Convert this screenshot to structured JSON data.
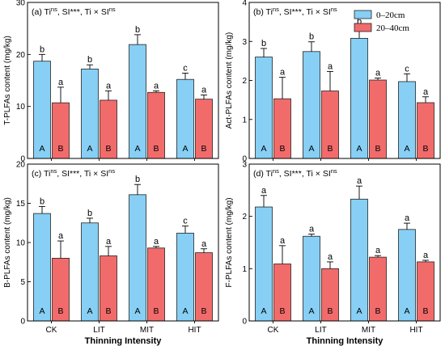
{
  "figure": {
    "legend": [
      {
        "label": "0–20cm",
        "color": "#87cff4"
      },
      {
        "label": "20–40cm",
        "color": "#f26b6b"
      }
    ],
    "xlabel": "Thinning Intensity"
  },
  "chart_data": [
    {
      "type": "bar",
      "panel": "(a)",
      "title_parts": [
        "(a) Ti",
        "ns",
        ", SI***, Ti × SI",
        "ns"
      ],
      "ylabel": "T-PLFAs content (mg/kg)",
      "ylim": [
        0,
        30
      ],
      "yticks": [
        0,
        10,
        20,
        30
      ],
      "categories": [
        "CK",
        "LIT",
        "MIT",
        "HIT"
      ],
      "series": [
        {
          "name": "0–20cm",
          "values": [
            18.7,
            17.2,
            21.9,
            15.2
          ],
          "errors": [
            1.3,
            0.8,
            1.9,
            1.2
          ],
          "letters": [
            "b",
            "b",
            "b",
            "c"
          ],
          "inbar": [
            "A",
            "A",
            "A",
            "A"
          ]
        },
        {
          "name": "20–40cm",
          "values": [
            10.7,
            11.2,
            12.7,
            11.4
          ],
          "errors": [
            3.0,
            1.8,
            0.3,
            0.8
          ],
          "letters": [
            "a",
            "a",
            "a",
            "a"
          ],
          "inbar": [
            "B",
            "B",
            "B",
            "B"
          ]
        }
      ],
      "show_xlabel": false
    },
    {
      "type": "bar",
      "panel": "(b)",
      "title_parts": [
        "(b) Ti",
        "ns",
        ", SI***, Ti × SI",
        "ns"
      ],
      "ylabel": "Act-PLFAs content (mg/kg)",
      "ylim": [
        0,
        4
      ],
      "yticks": [
        0,
        1,
        2,
        3,
        4
      ],
      "categories": [
        "CK",
        "LIT",
        "MIT",
        "HIT"
      ],
      "series": [
        {
          "name": "0–20cm",
          "values": [
            2.6,
            2.74,
            3.08,
            1.97
          ],
          "errors": [
            0.22,
            0.25,
            0.3,
            0.2
          ],
          "letters": [
            "b",
            "b",
            "b",
            "c"
          ],
          "inbar": [
            "A",
            "A",
            "A",
            "A"
          ]
        },
        {
          "name": "20–40cm",
          "values": [
            1.53,
            1.73,
            2.01,
            1.43
          ],
          "errors": [
            0.55,
            0.5,
            0.05,
            0.15
          ],
          "letters": [
            "a",
            "a",
            "a",
            "a"
          ],
          "inbar": [
            "B",
            "B",
            "B",
            "B"
          ]
        }
      ],
      "show_xlabel": false
    },
    {
      "type": "bar",
      "panel": "(c)",
      "title_parts": [
        "(c) Ti",
        "ns",
        ", SI***, Ti × SI",
        "ns"
      ],
      "ylabel": "B-PLFAs content (mg/kg)",
      "ylim": [
        0,
        20
      ],
      "yticks": [
        0,
        5,
        10,
        15,
        20
      ],
      "categories": [
        "CK",
        "LIT",
        "MIT",
        "HIT"
      ],
      "series": [
        {
          "name": "0–20cm",
          "values": [
            13.7,
            12.5,
            16.1,
            11.2
          ],
          "errors": [
            0.9,
            0.6,
            1.3,
            0.9
          ],
          "letters": [
            "b",
            "b",
            "b",
            "c"
          ],
          "inbar": [
            "A",
            "A",
            "A",
            "A"
          ]
        },
        {
          "name": "20–40cm",
          "values": [
            8.0,
            8.3,
            9.3,
            8.7
          ],
          "errors": [
            2.2,
            1.2,
            0.2,
            0.5
          ],
          "letters": [
            "a",
            "a",
            "a",
            "a"
          ],
          "inbar": [
            "B",
            "B",
            "B",
            "B"
          ]
        }
      ],
      "show_xlabel": true
    },
    {
      "type": "bar",
      "panel": "(d)",
      "title_parts": [
        "(d) Ti",
        "ns",
        ", SI***, Ti × SI",
        "ns"
      ],
      "ylabel": "F-PLFAs content (mg/kg)",
      "ylim": [
        0,
        3
      ],
      "yticks": [
        0,
        1,
        2,
        3
      ],
      "categories": [
        "CK",
        "LIT",
        "MIT",
        "HIT"
      ],
      "series": [
        {
          "name": "0–20cm",
          "values": [
            2.18,
            1.62,
            2.33,
            1.75
          ],
          "errors": [
            0.22,
            0.04,
            0.25,
            0.12
          ],
          "letters": [
            "a",
            "a",
            "a",
            "a"
          ],
          "inbar": [
            "A",
            "A",
            "A",
            "A"
          ]
        },
        {
          "name": "20–40cm",
          "values": [
            1.09,
            1.0,
            1.22,
            1.13
          ],
          "errors": [
            0.35,
            0.13,
            0.03,
            0.03
          ],
          "letters": [
            "a",
            "a",
            "a",
            "a"
          ],
          "inbar": [
            "B",
            "B",
            "B",
            "B"
          ]
        }
      ],
      "show_xlabel": true
    }
  ]
}
